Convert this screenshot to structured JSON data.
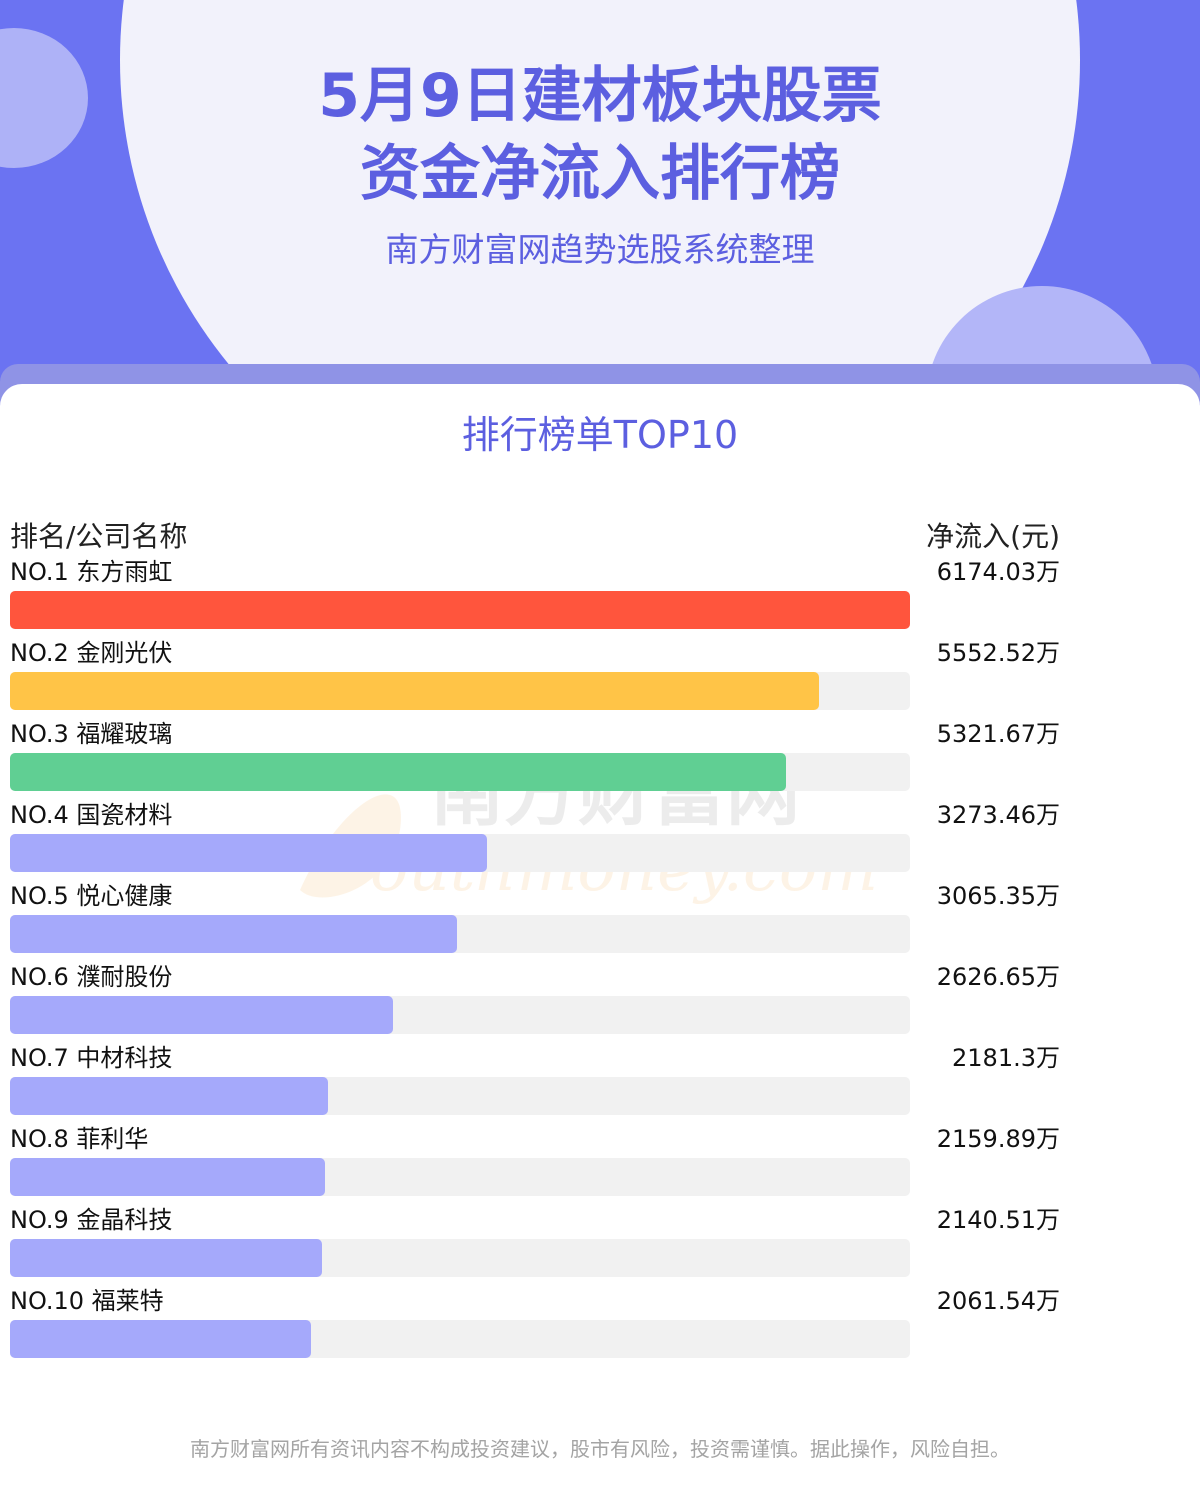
{
  "header": {
    "title_line1": "5月9日建材板块股票",
    "title_line2": "资金净流入排行榜",
    "subtitle": "南方财富网趋势选股系统整理"
  },
  "card": {
    "title": "排行榜单TOP10",
    "col_left": "排名/公司名称",
    "col_right": "净流入(元)"
  },
  "watermark": {
    "cn": "南方财富网",
    "en": "outhmoney.com"
  },
  "chart_data": {
    "type": "bar",
    "orientation": "horizontal",
    "categories": [
      "NO.1 东方雨虹",
      "NO.2 金刚光伏",
      "NO.3 福耀玻璃",
      "NO.4 国瓷材料",
      "NO.5 悦心健康",
      "NO.6 濮耐股份",
      "NO.7 中材科技",
      "NO.8 菲利华",
      "NO.9 金晶科技",
      "NO.10 福莱特"
    ],
    "values": [
      6174.03,
      5552.52,
      5321.67,
      3273.46,
      3065.35,
      2626.65,
      2181.3,
      2159.89,
      2140.51,
      2061.54
    ],
    "value_labels": [
      "6174.03万",
      "5552.52万",
      "5321.67万",
      "3273.46万",
      "3065.35万",
      "2626.65万",
      "2181.3万",
      "2159.89万",
      "2140.51万",
      "2061.54万"
    ],
    "colors": [
      "#ff553d",
      "#ffc447",
      "#60cf93",
      "#a5a9fb",
      "#a5a9fb",
      "#a5a9fb",
      "#a5a9fb",
      "#a5a9fb",
      "#a5a9fb",
      "#a5a9fb"
    ],
    "track_color": "#f1f1f1",
    "xlim": [
      0,
      6174.03
    ]
  },
  "footer": {
    "disclaimer": "南方财富网所有资讯内容不构成投资建议，股市有风险，投资需谨慎。据此操作，风险自担。"
  }
}
